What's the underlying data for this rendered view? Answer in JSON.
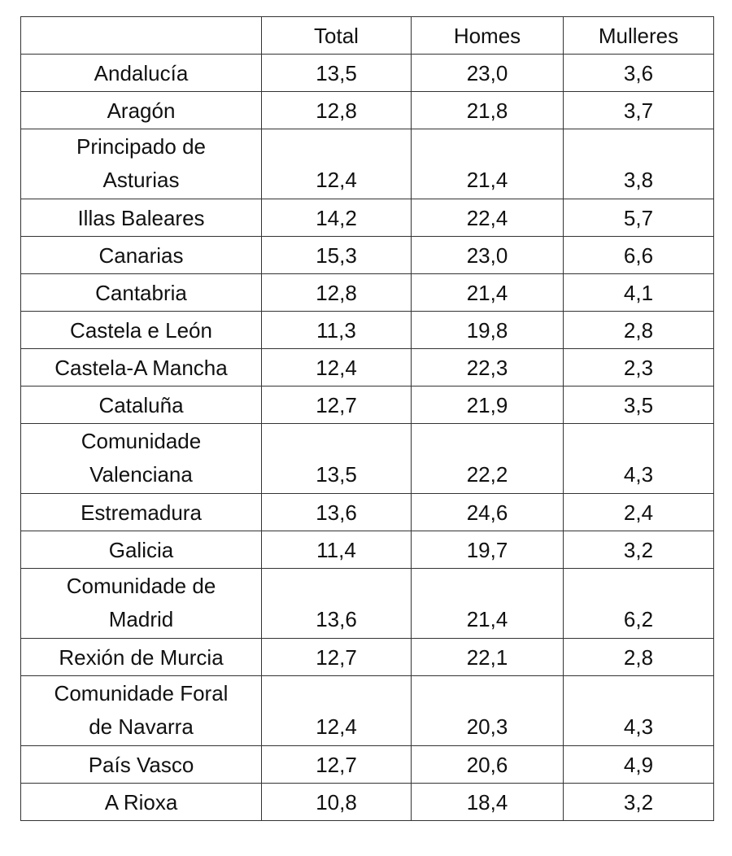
{
  "table": {
    "headers": [
      "",
      "Total",
      "Homes",
      "Mulleres"
    ],
    "rows": [
      {
        "region": "Andalucía",
        "region_lines": [
          "Andalucía"
        ],
        "total": "13,5",
        "homes": "23,0",
        "mulleres": "3,6"
      },
      {
        "region": "Aragón",
        "region_lines": [
          "Aragón"
        ],
        "total": "12,8",
        "homes": "21,8",
        "mulleres": "3,7"
      },
      {
        "region": "Principado de Asturias",
        "region_lines": [
          "Principado de",
          "Asturias"
        ],
        "total": "12,4",
        "homes": "21,4",
        "mulleres": "3,8"
      },
      {
        "region": "Illas Baleares",
        "region_lines": [
          "Illas Baleares"
        ],
        "total": "14,2",
        "homes": "22,4",
        "mulleres": "5,7"
      },
      {
        "region": "Canarias",
        "region_lines": [
          "Canarias"
        ],
        "total": "15,3",
        "homes": "23,0",
        "mulleres": "6,6"
      },
      {
        "region": "Cantabria",
        "region_lines": [
          "Cantabria"
        ],
        "total": "12,8",
        "homes": "21,4",
        "mulleres": "4,1"
      },
      {
        "region": "Castela e León",
        "region_lines": [
          "Castela e León"
        ],
        "total": "11,3",
        "homes": "19,8",
        "mulleres": "2,8"
      },
      {
        "region": "Castela-A Mancha",
        "region_lines": [
          "Castela-A Mancha"
        ],
        "total": "12,4",
        "homes": "22,3",
        "mulleres": "2,3"
      },
      {
        "region": "Cataluña",
        "region_lines": [
          "Cataluña"
        ],
        "total": "12,7",
        "homes": "21,9",
        "mulleres": "3,5"
      },
      {
        "region": "Comunidade Valenciana",
        "region_lines": [
          "Comunidade",
          "Valenciana"
        ],
        "total": "13,5",
        "homes": "22,2",
        "mulleres": "4,3"
      },
      {
        "region": "Estremadura",
        "region_lines": [
          "Estremadura"
        ],
        "total": "13,6",
        "homes": "24,6",
        "mulleres": "2,4"
      },
      {
        "region": "Galicia",
        "region_lines": [
          "Galicia"
        ],
        "total": "11,4",
        "homes": "19,7",
        "mulleres": "3,2"
      },
      {
        "region": "Comunidade de Madrid",
        "region_lines": [
          "Comunidade de",
          "Madrid"
        ],
        "total": "13,6",
        "homes": "21,4",
        "mulleres": "6,2"
      },
      {
        "region": "Rexión de Murcia",
        "region_lines": [
          "Rexión de Murcia"
        ],
        "total": "12,7",
        "homes": "22,1",
        "mulleres": "2,8"
      },
      {
        "region": "Comunidade Foral de Navarra",
        "region_lines": [
          "Comunidade Foral",
          "de Navarra"
        ],
        "total": "12,4",
        "homes": "20,3",
        "mulleres": "4,3"
      },
      {
        "region": "País Vasco",
        "region_lines": [
          "País Vasco"
        ],
        "total": "12,7",
        "homes": "20,6",
        "mulleres": "4,9"
      },
      {
        "region": "A Rioxa",
        "region_lines": [
          "A Rioxa"
        ],
        "total": "10,8",
        "homes": "18,4",
        "mulleres": "3,2"
      }
    ]
  }
}
